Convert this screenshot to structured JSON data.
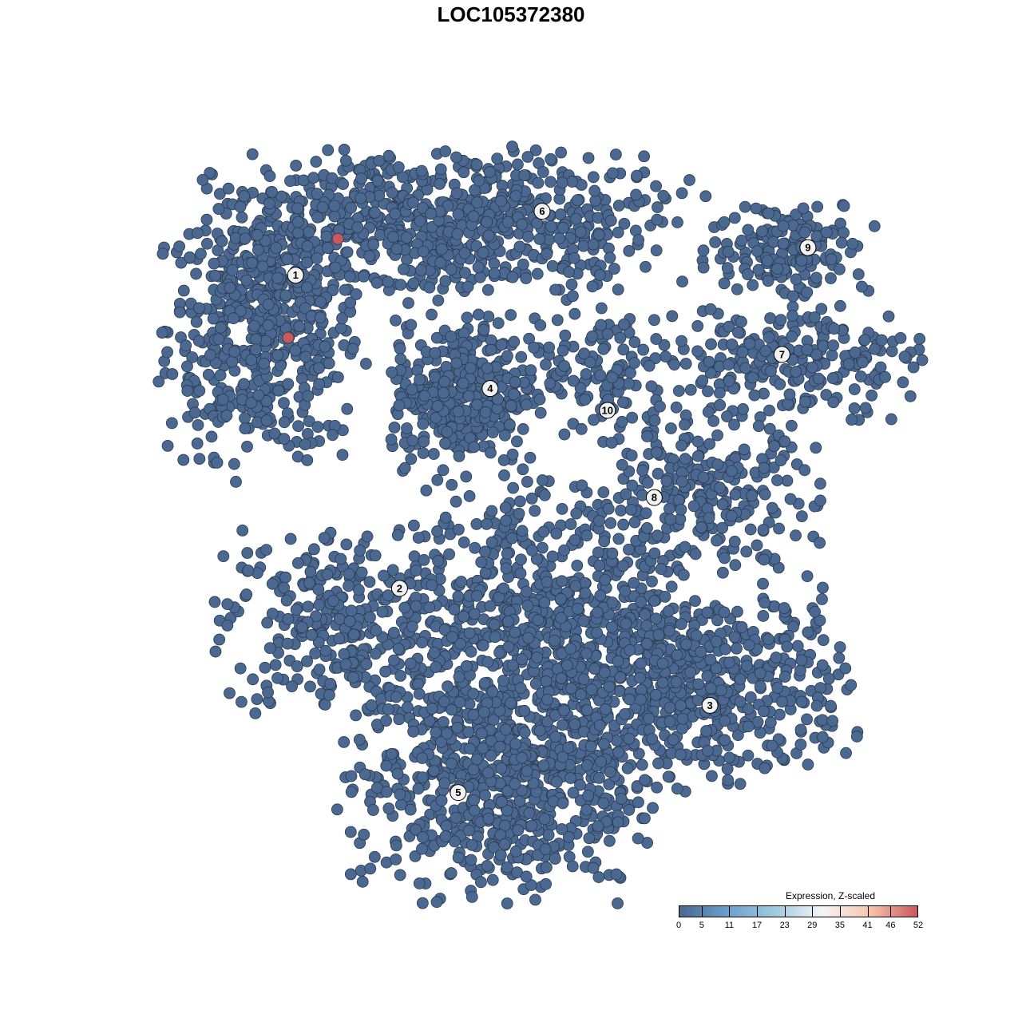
{
  "chart_data": {
    "type": "scatter",
    "title": "LOC105372380",
    "xlim": [
      0,
      100
    ],
    "ylim": [
      0,
      100
    ],
    "grid": false,
    "axes_visible": false,
    "point_color_low": "#4a6890",
    "point_color_high": "#c9585f",
    "clusters": [
      {
        "label": "1",
        "label_pos": [
          18.3,
          81.9
        ],
        "blobs": [
          {
            "center": [
              14,
              74.7
            ],
            "spread": [
              6.5,
              8.8
            ],
            "n": 550
          }
        ]
      },
      {
        "label": "2",
        "label_pos": [
          32.3,
          38.8
        ],
        "blobs": [
          {
            "center": [
              23.7,
              34.1
            ],
            "spread": [
              7.5,
              6.6
            ],
            "n": 300
          }
        ]
      },
      {
        "label": "3",
        "label_pos": [
          74.1,
          22.7
        ],
        "blobs": [
          {
            "center": [
              73.1,
              25.3
            ],
            "spread": [
              9.7,
              6.6
            ],
            "n": 550
          }
        ]
      },
      {
        "label": "4",
        "label_pos": [
          44.5,
          66.3
        ],
        "blobs": [
          {
            "center": [
              40.9,
              65.9
            ],
            "spread": [
              4.8,
              5
            ],
            "n": 380
          }
        ]
      },
      {
        "label": "5",
        "label_pos": [
          40.2,
          10.7
        ],
        "blobs": [
          {
            "center": [
              45.2,
              12.1
            ],
            "spread": [
              9.7,
              7.7
            ],
            "n": 650
          },
          {
            "center": [
              51.6,
              33
            ],
            "spread": [
              9.7,
              9.9
            ],
            "n": 700
          }
        ]
      },
      {
        "label": "6",
        "label_pos": [
          51.5,
          90.7
        ],
        "blobs": [
          {
            "center": [
              38.7,
              89
            ],
            "spread": [
              15,
              5
            ],
            "n": 700
          }
        ]
      },
      {
        "label": "7",
        "label_pos": [
          83.8,
          71
        ],
        "blobs": [
          {
            "center": [
              84.9,
              70.3
            ],
            "spread": [
              8.6,
              3.8
            ],
            "n": 230
          }
        ]
      },
      {
        "label": "8",
        "label_pos": [
          66.6,
          51.3
        ],
        "blobs": [
          {
            "center": [
              73.1,
              51.6
            ],
            "spread": [
              7.5,
              5.5
            ],
            "n": 260
          }
        ]
      },
      {
        "label": "9",
        "label_pos": [
          87.3,
          85.7
        ],
        "blobs": [
          {
            "center": [
              84.9,
              85.7
            ],
            "spread": [
              5.4,
              3.3
            ],
            "n": 160
          }
        ]
      },
      {
        "label": "10",
        "label_pos": [
          60.3,
          63.3
        ],
        "blobs": [
          {
            "center": [
              60.2,
              68.1
            ],
            "spread": [
              4.3,
              4.4
            ],
            "n": 120
          }
        ]
      }
    ],
    "high_expression_points": [
      {
        "x": 24,
        "y": 86.9,
        "value": 52
      },
      {
        "x": 17.3,
        "y": 73.3,
        "value": 50
      }
    ],
    "legend": {
      "title": "Expression, Z-scaled",
      "ticks": [
        "0",
        "5",
        "11",
        "17",
        "23",
        "29",
        "35",
        "41",
        "46",
        "52"
      ],
      "colors": [
        "#4a6890",
        "#6a9fcc",
        "#9fcae0",
        "#f3f5f7",
        "#f6c5ae",
        "#c9585f"
      ],
      "range": [
        0,
        52
      ],
      "placement": "bottom-right"
    }
  }
}
